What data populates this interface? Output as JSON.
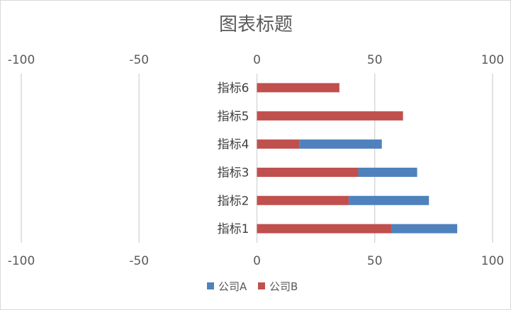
{
  "chart_data": {
    "type": "bar",
    "orientation": "horizontal",
    "stacked": true,
    "title": "图表标题",
    "categories": [
      "指标1",
      "指标2",
      "指标3",
      "指标4",
      "指标5",
      "指标6"
    ],
    "series": [
      {
        "name": "公司A",
        "color": "#4f81bd",
        "values": [
          28,
          34,
          25,
          35,
          0,
          0
        ]
      },
      {
        "name": "公司B",
        "color": "#c0504d",
        "values": [
          57,
          39,
          43,
          18,
          62,
          35
        ]
      }
    ],
    "xlim": [
      -100,
      100
    ],
    "xticks": [
      "-100",
      "-50",
      "0",
      "50",
      "100"
    ],
    "xtick_values": [
      -100,
      -50,
      0,
      50,
      100
    ],
    "gridlines": true,
    "legend_position": "bottom"
  }
}
